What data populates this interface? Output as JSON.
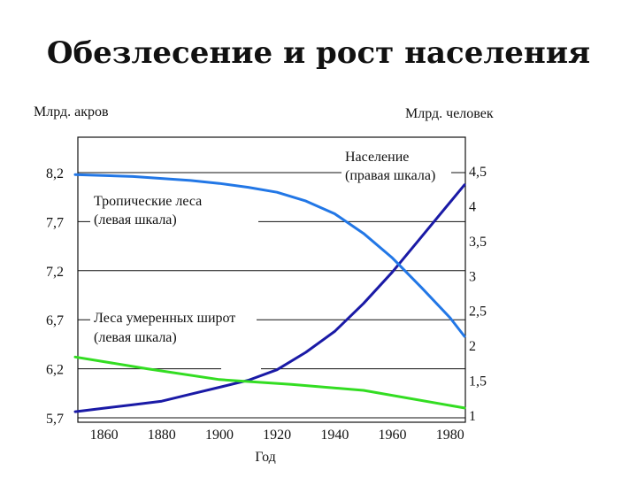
{
  "title": "Обезлесение и рост населения",
  "chart_data": {
    "type": "line",
    "x_label": "Год",
    "left_axis_unit": "Млрд. акров",
    "right_axis_unit": "Млрд. человек",
    "x_ticks": [
      "1860",
      "1880",
      "1900",
      "1920",
      "1940",
      "1960",
      "1980"
    ],
    "x_range": [
      1850,
      1985
    ],
    "left_ticks": [
      "8,2",
      "7,7",
      "7,2",
      "6,7",
      "6,2",
      "5,7"
    ],
    "left_range": [
      5.7,
      8.2
    ],
    "right_ticks": [
      "4,5",
      "4",
      "3,5",
      "3",
      "2,5",
      "2",
      "1,5",
      "1"
    ],
    "right_range": [
      1,
      4.5
    ],
    "grid": true,
    "series": [
      {
        "name": "Население",
        "name2": "(правая шкала)",
        "axis": "right",
        "color": "#1a1aa6",
        "x": [
          1850,
          1860,
          1870,
          1880,
          1890,
          1900,
          1910,
          1920,
          1930,
          1940,
          1950,
          1960,
          1970,
          1980,
          1985
        ],
        "values": [
          1.05,
          1.1,
          1.15,
          1.2,
          1.3,
          1.4,
          1.5,
          1.65,
          1.9,
          2.2,
          2.6,
          3.05,
          3.55,
          4.05,
          4.3
        ]
      },
      {
        "name": "Тропические леса",
        "name2": "(левая шкала)",
        "axis": "left",
        "color": "#2277e6",
        "x": [
          1850,
          1870,
          1890,
          1900,
          1910,
          1920,
          1930,
          1940,
          1950,
          1960,
          1970,
          1980,
          1985
        ],
        "values": [
          8.18,
          8.16,
          8.12,
          8.09,
          8.05,
          8.0,
          7.91,
          7.78,
          7.58,
          7.33,
          7.03,
          6.72,
          6.53
        ]
      },
      {
        "name": "Леса умеренных широт",
        "name2": "(левая шкала)",
        "axis": "left",
        "color": "#33dd22",
        "x": [
          1850,
          1875,
          1900,
          1925,
          1950,
          1985
        ],
        "values": [
          6.32,
          6.2,
          6.09,
          6.04,
          5.98,
          5.8
        ]
      }
    ]
  }
}
